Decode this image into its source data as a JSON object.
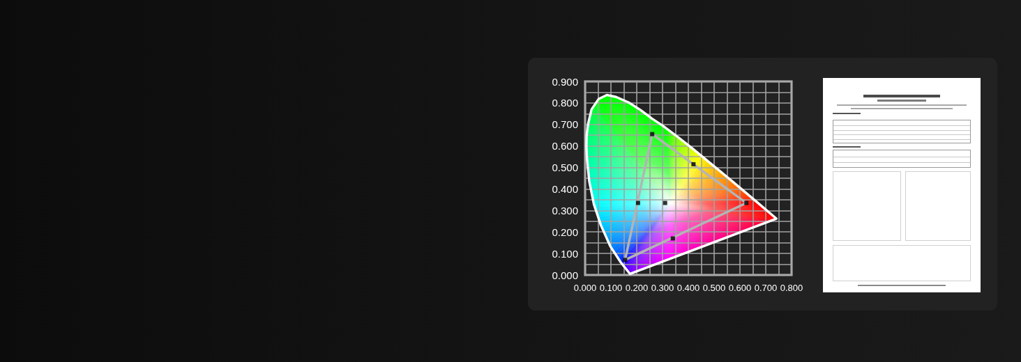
{
  "chart_data": {
    "type": "line",
    "xlim": [
      0,
      0.8
    ],
    "ylim": [
      0,
      0.9
    ],
    "xticks": [
      {
        "value": 0,
        "label": "0.000"
      },
      {
        "value": 0.05,
        "label": null
      },
      {
        "value": 0.1,
        "label": "0.100"
      },
      {
        "value": 0.15,
        "label": null
      },
      {
        "value": 0.2,
        "label": "0.200"
      },
      {
        "value": 0.25,
        "label": null
      },
      {
        "value": 0.3,
        "label": "0.300"
      },
      {
        "value": 0.35,
        "label": null
      },
      {
        "value": 0.4,
        "label": "0.400"
      },
      {
        "value": 0.45,
        "label": null
      },
      {
        "value": 0.5,
        "label": "0.500"
      },
      {
        "value": 0.55,
        "label": null
      },
      {
        "value": 0.6,
        "label": "0.600"
      },
      {
        "value": 0.65,
        "label": null
      },
      {
        "value": 0.7,
        "label": "0.700"
      },
      {
        "value": 0.75,
        "label": null
      },
      {
        "value": 0.8,
        "label": "0.800"
      }
    ],
    "yticks": [
      {
        "value": 0,
        "label": "0.000"
      },
      {
        "value": 0.05,
        "label": null
      },
      {
        "value": 0.1,
        "label": "0.100"
      },
      {
        "value": 0.15,
        "label": null
      },
      {
        "value": 0.2,
        "label": "0.200"
      },
      {
        "value": 0.25,
        "label": null
      },
      {
        "value": 0.3,
        "label": "0.300"
      },
      {
        "value": 0.35,
        "label": null
      },
      {
        "value": 0.4,
        "label": "0.400"
      },
      {
        "value": 0.45,
        "label": null
      },
      {
        "value": 0.5,
        "label": "0.500"
      },
      {
        "value": 0.55,
        "label": null
      },
      {
        "value": 0.6,
        "label": "0.600"
      },
      {
        "value": 0.65,
        "label": null
      },
      {
        "value": 0.7,
        "label": "0.700"
      },
      {
        "value": 0.75,
        "label": null
      },
      {
        "value": 0.8,
        "label": "0.800"
      },
      {
        "value": 0.85,
        "label": null
      },
      {
        "value": 0.9,
        "label": "0.900"
      }
    ],
    "grid": true,
    "marker": "none",
    "series": [
      {
        "color": "#ffffff",
        "x": [
          0.005,
          0.007,
          0.016,
          0.034,
          0.061,
          0.097,
          0.138,
          0.174,
          0.741,
          null,
          0.005,
          0.006,
          0.012,
          0.025,
          0.052,
          0.084,
          0.12,
          0.169,
          0.215,
          0.259,
          0.3,
          0.36,
          0.417,
          0.49,
          0.57,
          0.655,
          0.741
        ],
        "values": [
          0.598,
          0.544,
          0.436,
          0.329,
          0.232,
          0.135,
          0.059,
          0.005,
          0.262,
          null,
          0.598,
          0.65,
          0.705,
          0.77,
          0.818,
          0.837,
          0.828,
          0.802,
          0.767,
          0.727,
          0.695,
          0.641,
          0.587,
          0.515,
          0.436,
          0.35,
          0.262
        ]
      },
      {
        "color": "#b4b4b4",
        "x": [
          0.155,
          0.26,
          0.625,
          null,
          0.155,
          0.625
        ],
        "values": [
          0.07,
          0.655,
          0.335,
          null,
          0.07,
          0.335
        ]
      },
      {
        "type": "scatter",
        "marker": "square",
        "color": "#000000",
        "x": [
          0.26,
          0.42,
          0.625,
          0.34,
          0.155,
          0.205,
          0.31
        ],
        "values": [
          0.655,
          0.515,
          0.335,
          0.17,
          0.07,
          0.335,
          0.335
        ]
      }
    ]
  }
}
